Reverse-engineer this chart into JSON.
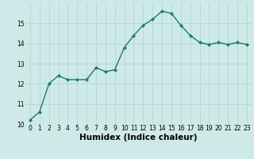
{
  "x": [
    0,
    1,
    2,
    3,
    4,
    5,
    6,
    7,
    8,
    9,
    10,
    11,
    12,
    13,
    14,
    15,
    16,
    17,
    18,
    19,
    20,
    21,
    22,
    23
  ],
  "y": [
    10.2,
    10.6,
    12.0,
    12.4,
    12.2,
    12.2,
    12.2,
    12.8,
    12.6,
    12.7,
    13.8,
    14.4,
    14.9,
    15.2,
    15.6,
    15.5,
    14.9,
    14.4,
    14.05,
    13.95,
    14.05,
    13.95,
    14.05,
    13.95
  ],
  "line_color": "#1a7a6e",
  "marker": "D",
  "marker_size": 2.0,
  "bg_color": "#ceeae8",
  "grid_color": "#b8d8d5",
  "xlabel": "Humidex (Indice chaleur)",
  "ylim": [
    10,
    16
  ],
  "xlim_min": -0.5,
  "xlim_max": 23.5,
  "yticks": [
    10,
    11,
    12,
    13,
    14,
    15
  ],
  "xticks": [
    0,
    1,
    2,
    3,
    4,
    5,
    6,
    7,
    8,
    9,
    10,
    11,
    12,
    13,
    14,
    15,
    16,
    17,
    18,
    19,
    20,
    21,
    22,
    23
  ],
  "tick_fontsize": 5.5,
  "xlabel_fontsize": 7.5,
  "linewidth": 1.0
}
